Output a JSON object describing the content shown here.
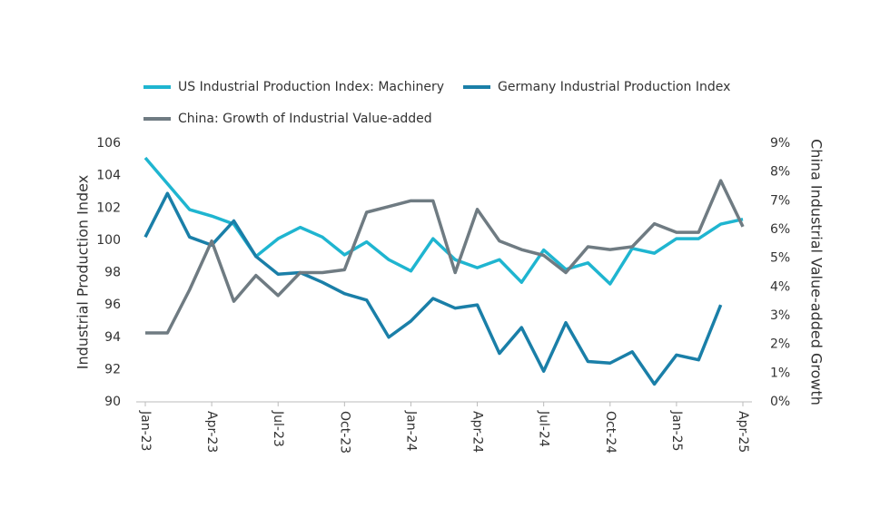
{
  "chart_data": {
    "type": "line",
    "categories": [
      "Jan-23",
      null,
      null,
      "Apr-23",
      null,
      null,
      "Jul-23",
      null,
      null,
      "Oct-23",
      null,
      null,
      "Jan-24",
      null,
      null,
      "Apr-24",
      null,
      null,
      "Jul-24",
      null,
      null,
      "Oct-24",
      null,
      null,
      "Jan-25",
      null,
      null,
      "Apr-25"
    ],
    "y_label": "Industrial Production Index",
    "y2_label": "China Industrial Value-added Growth",
    "ylim": [
      90,
      106
    ],
    "yticks": [
      90,
      92,
      94,
      96,
      98,
      100,
      102,
      104,
      106
    ],
    "y2lim": [
      0,
      9
    ],
    "y2ticks": [
      {
        "value": 0,
        "label": "0%"
      },
      {
        "value": 1,
        "label": "1%"
      },
      {
        "value": 2,
        "label": "2%"
      },
      {
        "value": 3,
        "label": "3%"
      },
      {
        "value": 4,
        "label": "4%"
      },
      {
        "value": 5,
        "label": "5%"
      },
      {
        "value": 6,
        "label": "6%"
      },
      {
        "value": 7,
        "label": "7%"
      },
      {
        "value": 8,
        "label": "8%"
      },
      {
        "value": 9,
        "label": "9%"
      }
    ],
    "grid": false,
    "series": [
      {
        "name": "US Industrial Production Index: Machinery",
        "color": "#1fb5d0",
        "values": [
          105.1,
          103.5,
          101.9,
          101.5,
          101.0,
          99.0,
          100.1,
          100.8,
          100.2,
          99.1,
          99.9,
          98.8,
          98.1,
          100.1,
          98.8,
          98.3,
          98.8,
          97.4,
          99.4,
          98.2,
          98.6,
          97.3,
          99.5,
          99.2,
          100.1,
          100.1,
          101.0,
          101.3
        ]
      },
      {
        "name": "Germany Industrial Production Index",
        "color": "#1a7fa8",
        "values": [
          100.2,
          102.9,
          100.2,
          99.7,
          101.2,
          99.0,
          97.9,
          98.0,
          97.4,
          96.7,
          96.3,
          94.0,
          95.0,
          96.4,
          95.8,
          96.0,
          93.0,
          94.6,
          91.9,
          94.9,
          92.5,
          92.4,
          93.1,
          91.1,
          92.9,
          92.6,
          96.0,
          null
        ]
      },
      {
        "name": "China: Growth of Industrial Value-added",
        "color": "#6f7b82",
        "axis": "y2",
        "values": [
          2.4,
          2.4,
          3.9,
          5.6,
          3.5,
          4.4,
          3.7,
          4.5,
          4.5,
          4.6,
          6.6,
          6.8,
          7.0,
          7.0,
          4.5,
          6.7,
          5.6,
          5.3,
          5.1,
          4.5,
          5.4,
          5.3,
          5.4,
          6.2,
          5.9,
          5.9,
          7.7,
          6.1
        ]
      }
    ]
  }
}
